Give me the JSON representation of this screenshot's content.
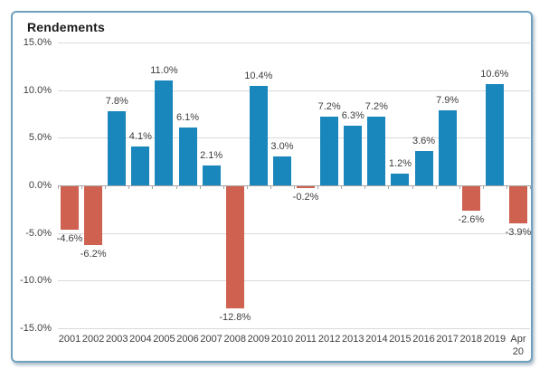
{
  "title": "Rendements",
  "colors": {
    "bar_positive": "#1986BC",
    "bar_negative": "#CF6150",
    "gridline": "#D9D9D9",
    "zero_axis": "#A6A6A6",
    "text": "#3d3d3d",
    "frame_border": "#6FA0BE"
  },
  "chart_data": {
    "type": "bar",
    "title": "Rendements",
    "xlabel": "",
    "ylabel": "",
    "ylim": [
      -15,
      15
    ],
    "ytick_step": 5,
    "ytick_labels": [
      "15.0%",
      "10.0%",
      "5.0%",
      "0.0%",
      "-5.0%",
      "-10.0%",
      "-15.0%"
    ],
    "grid": true,
    "legend": false,
    "categories": [
      "2001",
      "2002",
      "2003",
      "2004",
      "2005",
      "2006",
      "2007",
      "2008",
      "2009",
      "2010",
      "2011",
      "2012",
      "2013",
      "2014",
      "2015",
      "2016",
      "2017",
      "2018",
      "2019",
      "Apr\n20"
    ],
    "values": [
      -4.6,
      -6.2,
      7.8,
      4.1,
      11.0,
      6.1,
      2.1,
      -12.8,
      10.4,
      3.0,
      -0.2,
      7.2,
      6.3,
      7.2,
      1.2,
      3.6,
      7.9,
      -2.6,
      10.6,
      -3.9
    ],
    "value_labels": [
      "-4.6%",
      "-6.2%",
      "7.8%",
      "4.1%",
      "11.0%",
      "6.1%",
      "2.1%",
      "-12.8%",
      "10.4%",
      "3.0%",
      "-0.2%",
      "7.2%",
      "6.3%",
      "7.2%",
      "1.2%",
      "3.6%",
      "7.9%",
      "-2.6%",
      "10.6%",
      "-3.9%"
    ]
  }
}
